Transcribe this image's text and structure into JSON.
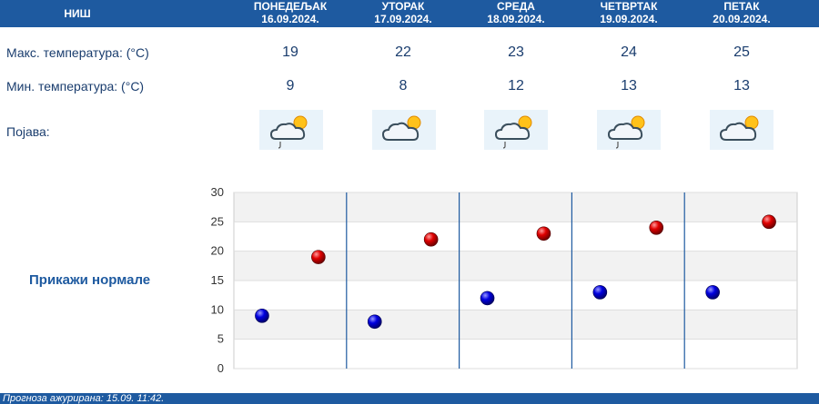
{
  "header": {
    "city": "НИШ",
    "days": [
      {
        "name": "ПОНЕДЕЉАК",
        "date": "16.09.2024."
      },
      {
        "name": "УТОРАК",
        "date": "17.09.2024."
      },
      {
        "name": "СРЕДА",
        "date": "18.09.2024."
      },
      {
        "name": "ЧЕТВРТАК",
        "date": "19.09.2024."
      },
      {
        "name": "ПЕТАК",
        "date": "20.09.2024."
      }
    ]
  },
  "rows": {
    "max_label": "Макс. температура: (°C)",
    "min_label": "Мин. температура: (°C)",
    "phenomenon_label": "Појава:",
    "max": [
      "19",
      "22",
      "23",
      "24",
      "25"
    ],
    "min": [
      "9",
      "8",
      "12",
      "13",
      "13"
    ],
    "icons": [
      "cloud-sun-rain-icon",
      "cloud-sun-icon",
      "cloud-sun-rain-icon",
      "cloud-sun-rain-icon",
      "cloud-sun-icon"
    ]
  },
  "normals_link": "Прикажи нормале",
  "footer": "Прогноза ажурирана:  15.09. 11:42.",
  "colors": {
    "header": "#1e5aa0",
    "max_marker": "#cc0000",
    "min_marker": "#0000cc"
  },
  "chart_data": {
    "type": "scatter",
    "categories": [
      "16.09.2024.",
      "17.09.2024.",
      "18.09.2024.",
      "19.09.2024.",
      "20.09.2024."
    ],
    "series": [
      {
        "values": [
          9,
          8,
          12,
          13,
          13
        ],
        "color": "#0000cc"
      },
      {
        "values": [
          19,
          22,
          23,
          24,
          25
        ],
        "color": "#cc0000"
      }
    ],
    "ylim": [
      0,
      30
    ],
    "yticks": [
      "0",
      "5",
      "10",
      "15",
      "20",
      "25",
      "30"
    ],
    "grid": true
  }
}
